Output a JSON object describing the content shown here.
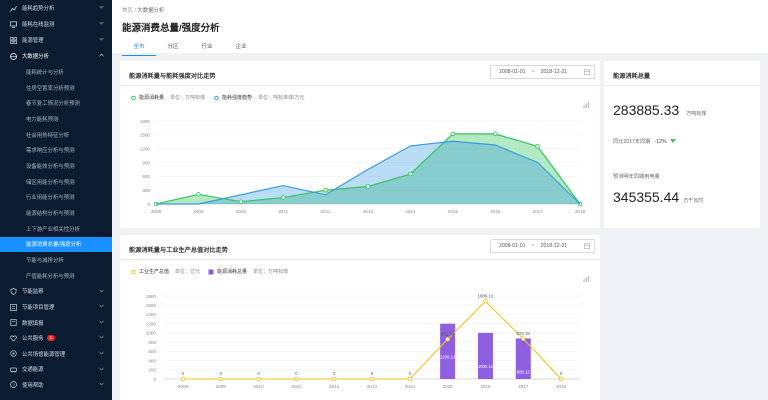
{
  "sidebar": {
    "top_items": [
      {
        "label": "能耗趋势分析",
        "icon": "chart-icon"
      },
      {
        "label": "能耗在线监测",
        "icon": "monitor-icon"
      },
      {
        "label": "能源管理",
        "icon": "grid-icon"
      },
      {
        "label": "大数据分析",
        "icon": "globe-icon"
      }
    ],
    "sub_items": [
      {
        "label": "能耗统计与分析"
      },
      {
        "label": "住房空置率分析预测"
      },
      {
        "label": "春节复工情况分析预测"
      },
      {
        "label": "电力能耗预测"
      },
      {
        "label": "社会用热特征分析"
      },
      {
        "label": "需求响应分析与预测"
      },
      {
        "label": "设备能效分析与预测"
      },
      {
        "label": "储区用能分析与预测"
      },
      {
        "label": "行业用能分析与预测"
      },
      {
        "label": "能源结构分析与预测"
      },
      {
        "label": "上下游产业相关性分析"
      },
      {
        "label": "能源消费总量/强度分析",
        "active": true
      },
      {
        "label": "节能与减排分析"
      },
      {
        "label": "产值能耗分析与预测"
      }
    ],
    "bottom_items": [
      {
        "label": "节能监察",
        "icon": "shield-icon"
      },
      {
        "label": "节能项目管理",
        "icon": "folder-icon"
      },
      {
        "label": "数据填报",
        "icon": "form-icon"
      },
      {
        "label": "公共服务",
        "icon": "heart-icon",
        "badge": "1"
      },
      {
        "label": "公共场馆能源管理",
        "icon": "building-icon"
      },
      {
        "label": "交通能源",
        "icon": "car-icon"
      },
      {
        "label": "使用帮助",
        "icon": "help-icon"
      }
    ]
  },
  "header": {
    "breadcrumb_root": "首页",
    "breadcrumb_sep": "/",
    "breadcrumb_current": "大数据分析",
    "title": "能源消费总量/强度分析",
    "tabs": [
      "全市",
      "分区",
      "行业",
      "企业"
    ]
  },
  "card1": {
    "title": "能源消耗量与能耗强度对比走势",
    "date_start": "2008-01-01",
    "date_sep": "~",
    "date_end": "2018-12-31",
    "legend": [
      {
        "name": "能源消耗量",
        "unit": "单位：万吨标煤",
        "color": "#37c460"
      },
      {
        "name": "能耗强度趋势",
        "unit": "单位：吨标准煤/万元",
        "color": "#3a9be0"
      }
    ]
  },
  "card2": {
    "title": "能源消耗总量",
    "value": "283885.33",
    "value_unit": "万吨标煤",
    "compare_label": "同比2017年同期",
    "compare_value": "-12%",
    "forecast_label": "预测明年同期用电量",
    "forecast_value": "345355.44",
    "forecast_unit": "万千瓦时"
  },
  "card3": {
    "title": "能源消耗量与工业生产总值对比走势",
    "date_start": "2008-01-01",
    "date_sep": "~",
    "date_end": "2018-12-31",
    "legend": [
      {
        "name": "工业生产总值",
        "unit": "单位：亿元",
        "color": "#f2c21a"
      },
      {
        "name": "能源消耗总量",
        "unit": "单位：万吨标煤",
        "color": "#8e5fe0"
      }
    ]
  },
  "chart_data": [
    {
      "type": "area",
      "title": "能源消耗量与能耗强度对比走势",
      "categories": [
        "2008",
        "2009",
        "2010",
        "2011",
        "2012",
        "2013",
        "2014",
        "2015",
        "2016",
        "2017",
        "2018"
      ],
      "ylim": [
        0,
        1800
      ],
      "yticks": [
        0,
        300,
        600,
        900,
        1200,
        1500,
        1800
      ],
      "series": [
        {
          "name": "能源消耗量",
          "color": "#37c460",
          "values": [
            0,
            210,
            50,
            140,
            300,
            380,
            650,
            1520,
            1520,
            1250,
            0
          ]
        },
        {
          "name": "能耗强度趋势",
          "color": "#3a9be0",
          "values": [
            0,
            0,
            200,
            400,
            200,
            750,
            1260,
            1360,
            1280,
            900,
            0
          ]
        }
      ]
    },
    {
      "type": "bar",
      "title": "能源消耗量与工业生产总值对比走势",
      "categories": [
        "2008",
        "2009",
        "2010",
        "2011",
        "2012",
        "2013",
        "2014",
        "2015",
        "2016",
        "2017",
        "2018"
      ],
      "ylim": [
        0,
        1800
      ],
      "yticks": [
        0,
        200,
        400,
        600,
        800,
        1000,
        1200,
        1400,
        1600,
        1800
      ],
      "series": [
        {
          "name": "工业生产总值",
          "type": "line",
          "color": "#f2c21a",
          "values": [
            0,
            0,
            0,
            0,
            0,
            0,
            0,
            861.34,
            1686.12,
            872.34,
            0
          ],
          "labels": [
            "0",
            "0",
            "0",
            "0",
            "0",
            "0",
            "0",
            "861.34",
            "1686.12",
            "872.34",
            "0"
          ]
        },
        {
          "name": "能源消耗总量",
          "type": "bar",
          "color": "#8e5fe0",
          "values": [
            0,
            0,
            0,
            0,
            0,
            0,
            0,
            1200,
            1000,
            880,
            0
          ],
          "labels": [
            "",
            "",
            "",
            "",
            "",
            "",
            "",
            "1200.12",
            "1000.12",
            "880.12",
            ""
          ]
        }
      ]
    }
  ]
}
